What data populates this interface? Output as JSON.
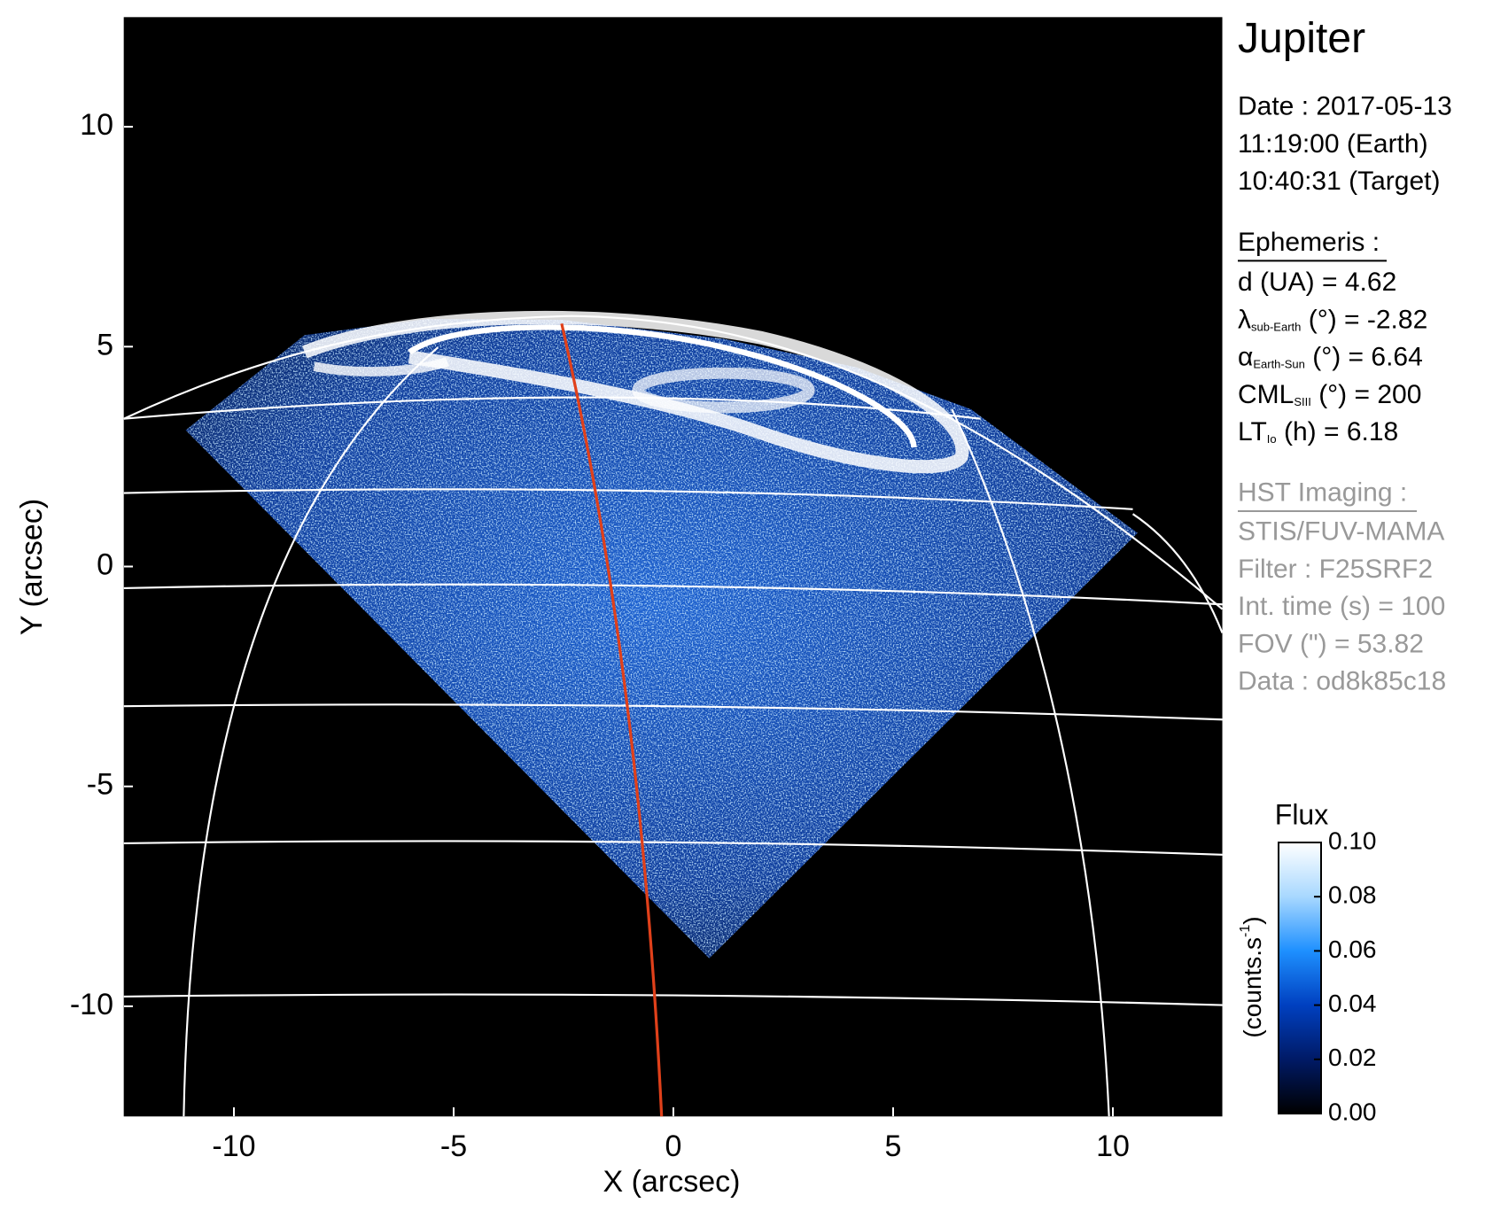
{
  "chart_data": {
    "type": "image",
    "xlabel": "X (arcsec)",
    "ylabel": "Y (arcsec)",
    "xlim": [
      -12.5,
      12.5
    ],
    "ylim": [
      -12.5,
      12.5
    ],
    "xticks": [
      -10,
      -5,
      0,
      5,
      10
    ],
    "yticks": [
      -10,
      -5,
      0,
      5,
      10
    ],
    "colorbar": {
      "title": "Flux",
      "units": {
        "text": "(counts.s",
        "sup": "-1",
        "close": ")"
      },
      "clim": [
        0,
        0.1
      ],
      "ticks": [
        {
          "value": 0,
          "label": "0.00"
        },
        0.02,
        0.04,
        0.06,
        0.08,
        {
          "value": 0.1,
          "label": "0.10"
        }
      ],
      "colors": [
        "#000000",
        "#001a66",
        "#0040c0",
        "#1e90ff",
        "#a8d8ff",
        "#ffffff"
      ]
    },
    "panel": {
      "title": "Jupiter",
      "date": [
        "Date : 2017-05-13",
        "11:19:00 (Earth)",
        "10:40:31 (Target)"
      ],
      "ephemeris_title": "Ephemeris :",
      "ephemeris": [
        {
          "main": "d (UA)    = 4.62"
        },
        {
          "main": "λ",
          "sub": "sub-Earth",
          "rest": " (°) = -2.82"
        },
        {
          "main": "α",
          "sub": "Earth-Sun",
          "rest": " (°) = 6.64"
        },
        {
          "main": "CML",
          "sub": "SIII",
          "rest": " (°) = 200"
        },
        {
          "main": "LT",
          "sub": "Io",
          "rest": " (h) = 6.18"
        }
      ],
      "imaging_title": "HST Imaging :",
      "imaging": [
        "STIS/FUV-MAMA",
        "Filter : F25SRF2",
        "Int. time (s) = 100",
        "FOV (\") = 53.82",
        "Data : od8k85c18"
      ]
    }
  }
}
